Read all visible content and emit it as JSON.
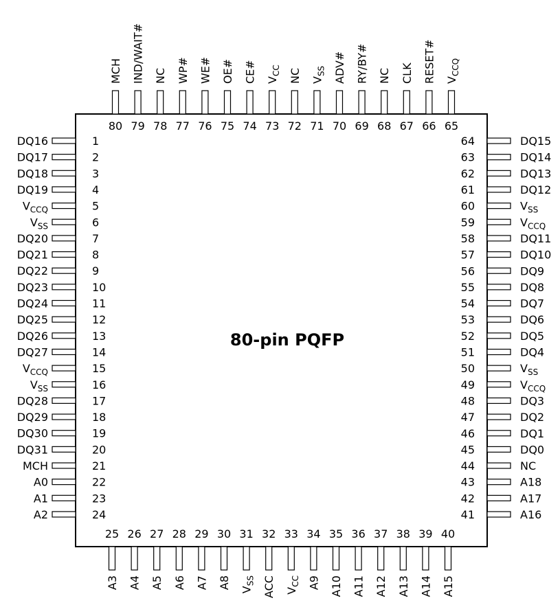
{
  "title": "80-pin PQFP",
  "pins": {
    "left": [
      {
        "num": "1",
        "name": "DQ16"
      },
      {
        "num": "2",
        "name": "DQ17"
      },
      {
        "num": "3",
        "name": "DQ18"
      },
      {
        "num": "4",
        "name": "DQ19"
      },
      {
        "num": "5",
        "name": "V",
        "sub": "CCQ"
      },
      {
        "num": "6",
        "name": "V",
        "sub": "SS"
      },
      {
        "num": "7",
        "name": "DQ20"
      },
      {
        "num": "8",
        "name": "DQ21"
      },
      {
        "num": "9",
        "name": "DQ22"
      },
      {
        "num": "10",
        "name": "DQ23"
      },
      {
        "num": "11",
        "name": "DQ24"
      },
      {
        "num": "12",
        "name": "DQ25"
      },
      {
        "num": "13",
        "name": "DQ26"
      },
      {
        "num": "14",
        "name": "DQ27"
      },
      {
        "num": "15",
        "name": "V",
        "sub": "CCQ"
      },
      {
        "num": "16",
        "name": "V",
        "sub": "SS"
      },
      {
        "num": "17",
        "name": "DQ28"
      },
      {
        "num": "18",
        "name": "DQ29"
      },
      {
        "num": "19",
        "name": "DQ30"
      },
      {
        "num": "20",
        "name": "DQ31"
      },
      {
        "num": "21",
        "name": "MCH"
      },
      {
        "num": "22",
        "name": "A0"
      },
      {
        "num": "23",
        "name": "A1"
      },
      {
        "num": "24",
        "name": "A2"
      }
    ],
    "bottom": [
      {
        "num": "25",
        "name": "A3"
      },
      {
        "num": "26",
        "name": "A4"
      },
      {
        "num": "27",
        "name": "A5"
      },
      {
        "num": "28",
        "name": "A6"
      },
      {
        "num": "29",
        "name": "A7"
      },
      {
        "num": "30",
        "name": "A8"
      },
      {
        "num": "31",
        "name": "V",
        "sub": "SS"
      },
      {
        "num": "32",
        "name": "ACC"
      },
      {
        "num": "33",
        "name": "V",
        "sub": "CC"
      },
      {
        "num": "34",
        "name": "A9"
      },
      {
        "num": "35",
        "name": "A10"
      },
      {
        "num": "36",
        "name": "A11"
      },
      {
        "num": "37",
        "name": "A12"
      },
      {
        "num": "38",
        "name": "A13"
      },
      {
        "num": "39",
        "name": "A14"
      },
      {
        "num": "40",
        "name": "A15"
      }
    ],
    "right": [
      {
        "num": "41",
        "name": "A16"
      },
      {
        "num": "42",
        "name": "A17"
      },
      {
        "num": "43",
        "name": "A18"
      },
      {
        "num": "44",
        "name": "NC"
      },
      {
        "num": "45",
        "name": "DQ0"
      },
      {
        "num": "46",
        "name": "DQ1"
      },
      {
        "num": "47",
        "name": "DQ2"
      },
      {
        "num": "48",
        "name": "DQ3"
      },
      {
        "num": "49",
        "name": "V",
        "sub": "CCQ"
      },
      {
        "num": "50",
        "name": "V",
        "sub": "SS"
      },
      {
        "num": "51",
        "name": "DQ4"
      },
      {
        "num": "52",
        "name": "DQ5"
      },
      {
        "num": "53",
        "name": "DQ6"
      },
      {
        "num": "54",
        "name": "DQ7"
      },
      {
        "num": "55",
        "name": "DQ8"
      },
      {
        "num": "56",
        "name": "DQ9"
      },
      {
        "num": "57",
        "name": "DQ10"
      },
      {
        "num": "58",
        "name": "DQ11"
      },
      {
        "num": "59",
        "name": "V",
        "sub": "CCQ"
      },
      {
        "num": "60",
        "name": "V",
        "sub": "SS"
      },
      {
        "num": "61",
        "name": "DQ12"
      },
      {
        "num": "62",
        "name": "DQ13"
      },
      {
        "num": "63",
        "name": "DQ14"
      },
      {
        "num": "64",
        "name": "DQ15"
      }
    ],
    "top": [
      {
        "num": "65",
        "name": "V",
        "sub": "CCQ"
      },
      {
        "num": "66",
        "name": "RESET#"
      },
      {
        "num": "67",
        "name": "CLK"
      },
      {
        "num": "68",
        "name": "NC"
      },
      {
        "num": "69",
        "name": "RY/BY#"
      },
      {
        "num": "70",
        "name": "ADV#"
      },
      {
        "num": "71",
        "name": "V",
        "sub": "SS"
      },
      {
        "num": "72",
        "name": "NC"
      },
      {
        "num": "73",
        "name": "V",
        "sub": "CC"
      },
      {
        "num": "74",
        "name": "CE#"
      },
      {
        "num": "75",
        "name": "OE#"
      },
      {
        "num": "76",
        "name": "WE#"
      },
      {
        "num": "77",
        "name": "WP#"
      },
      {
        "num": "78",
        "name": "NC"
      },
      {
        "num": "79",
        "name": "IND/WAIT#"
      },
      {
        "num": "80",
        "name": "MCH"
      }
    ]
  }
}
